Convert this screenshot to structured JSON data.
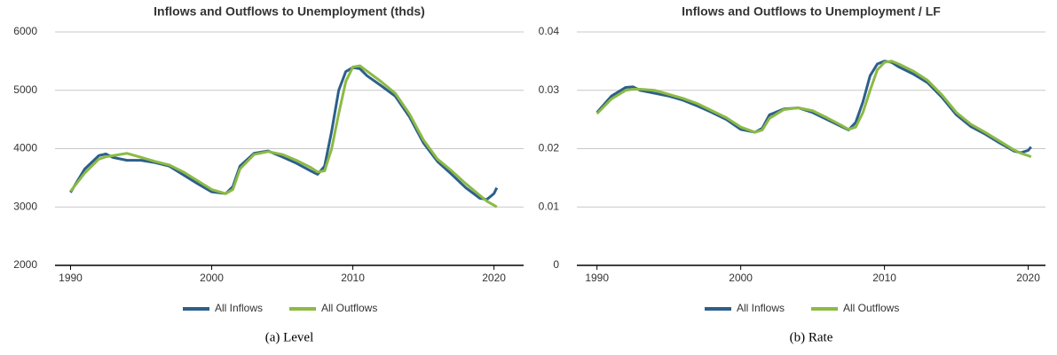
{
  "chart_data": [
    {
      "type": "line",
      "title": "Inflows and Outflows to Unemployment (thds)",
      "caption": "(a) Level",
      "x": [
        1990,
        1991,
        1992,
        1992.5,
        1993,
        1994,
        1995,
        1996,
        1997,
        1998,
        1999,
        2000,
        2001,
        2001.5,
        2002,
        2003,
        2004,
        2005,
        2006,
        2007,
        2007.5,
        2008,
        2008.5,
        2009,
        2009.5,
        2010,
        2010.5,
        2011,
        2012,
        2013,
        2014,
        2015,
        2016,
        2017,
        2018,
        2019,
        2019.5,
        2020,
        2020.2
      ],
      "series": [
        {
          "name": "All Inflows",
          "color": "#2d5f8b",
          "values": [
            3250,
            3650,
            3880,
            3910,
            3850,
            3800,
            3800,
            3760,
            3700,
            3550,
            3400,
            3260,
            3230,
            3350,
            3700,
            3920,
            3960,
            3860,
            3750,
            3620,
            3560,
            3700,
            4300,
            5000,
            5320,
            5390,
            5370,
            5250,
            5080,
            4900,
            4550,
            4100,
            3780,
            3560,
            3330,
            3150,
            3130,
            3230,
            3330
          ]
        },
        {
          "name": "All Outflows",
          "color": "#8cba45",
          "values": [
            3270,
            3580,
            3820,
            3860,
            3880,
            3920,
            3850,
            3780,
            3720,
            3600,
            3450,
            3300,
            3230,
            3300,
            3650,
            3900,
            3950,
            3900,
            3800,
            3680,
            3600,
            3620,
            4000,
            4600,
            5150,
            5400,
            5420,
            5330,
            5150,
            4950,
            4600,
            4150,
            3820,
            3620,
            3400,
            3200,
            3100,
            3030,
            3000
          ]
        }
      ],
      "xlim": [
        1988.9,
        2022.1
      ],
      "xticks": [
        1990,
        2000,
        2010,
        2020
      ],
      "ylim": [
        2000,
        6000
      ],
      "yticks": [
        2000,
        3000,
        4000,
        5000,
        6000
      ],
      "grid": true,
      "legend": "bottom"
    },
    {
      "type": "line",
      "title": "Inflows and Outflows to Unemployment / LF",
      "caption": "(b) Rate",
      "x": [
        1990,
        1991,
        1992,
        1992.5,
        1993,
        1994,
        1995,
        1996,
        1997,
        1998,
        1999,
        2000,
        2001,
        2001.5,
        2002,
        2003,
        2004,
        2005,
        2006,
        2007,
        2007.5,
        2008,
        2008.5,
        2009,
        2009.5,
        2010,
        2010.5,
        2011,
        2012,
        2013,
        2014,
        2015,
        2016,
        2017,
        2018,
        2019,
        2019.5,
        2020,
        2020.2
      ],
      "series": [
        {
          "name": "All Inflows",
          "color": "#2d5f8b",
          "values": [
            0.0262,
            0.029,
            0.0305,
            0.0306,
            0.03,
            0.0295,
            0.029,
            0.0283,
            0.0273,
            0.0262,
            0.025,
            0.0233,
            0.0228,
            0.0235,
            0.0258,
            0.0268,
            0.027,
            0.0262,
            0.025,
            0.0238,
            0.0232,
            0.0245,
            0.028,
            0.0325,
            0.0345,
            0.035,
            0.0348,
            0.034,
            0.0328,
            0.0313,
            0.0288,
            0.0258,
            0.0238,
            0.0225,
            0.021,
            0.0196,
            0.0193,
            0.0197,
            0.0203
          ]
        },
        {
          "name": "All Outflows",
          "color": "#8cba45",
          "values": [
            0.026,
            0.0285,
            0.03,
            0.0302,
            0.0302,
            0.03,
            0.0293,
            0.0286,
            0.0277,
            0.0265,
            0.0253,
            0.0237,
            0.0228,
            0.0232,
            0.0252,
            0.0267,
            0.027,
            0.0265,
            0.0253,
            0.024,
            0.0233,
            0.0237,
            0.0262,
            0.03,
            0.0335,
            0.0348,
            0.035,
            0.0345,
            0.0333,
            0.0317,
            0.0292,
            0.0262,
            0.0242,
            0.0228,
            0.0213,
            0.0198,
            0.0192,
            0.0188,
            0.0186
          ]
        }
      ],
      "xlim": [
        1988.6,
        2021.2
      ],
      "xticks": [
        1990,
        2000,
        2010,
        2020
      ],
      "ylim": [
        0,
        0.04
      ],
      "yticks": [
        0,
        0.01,
        0.02,
        0.03,
        0.04
      ],
      "grid": true,
      "legend": "bottom"
    }
  ]
}
